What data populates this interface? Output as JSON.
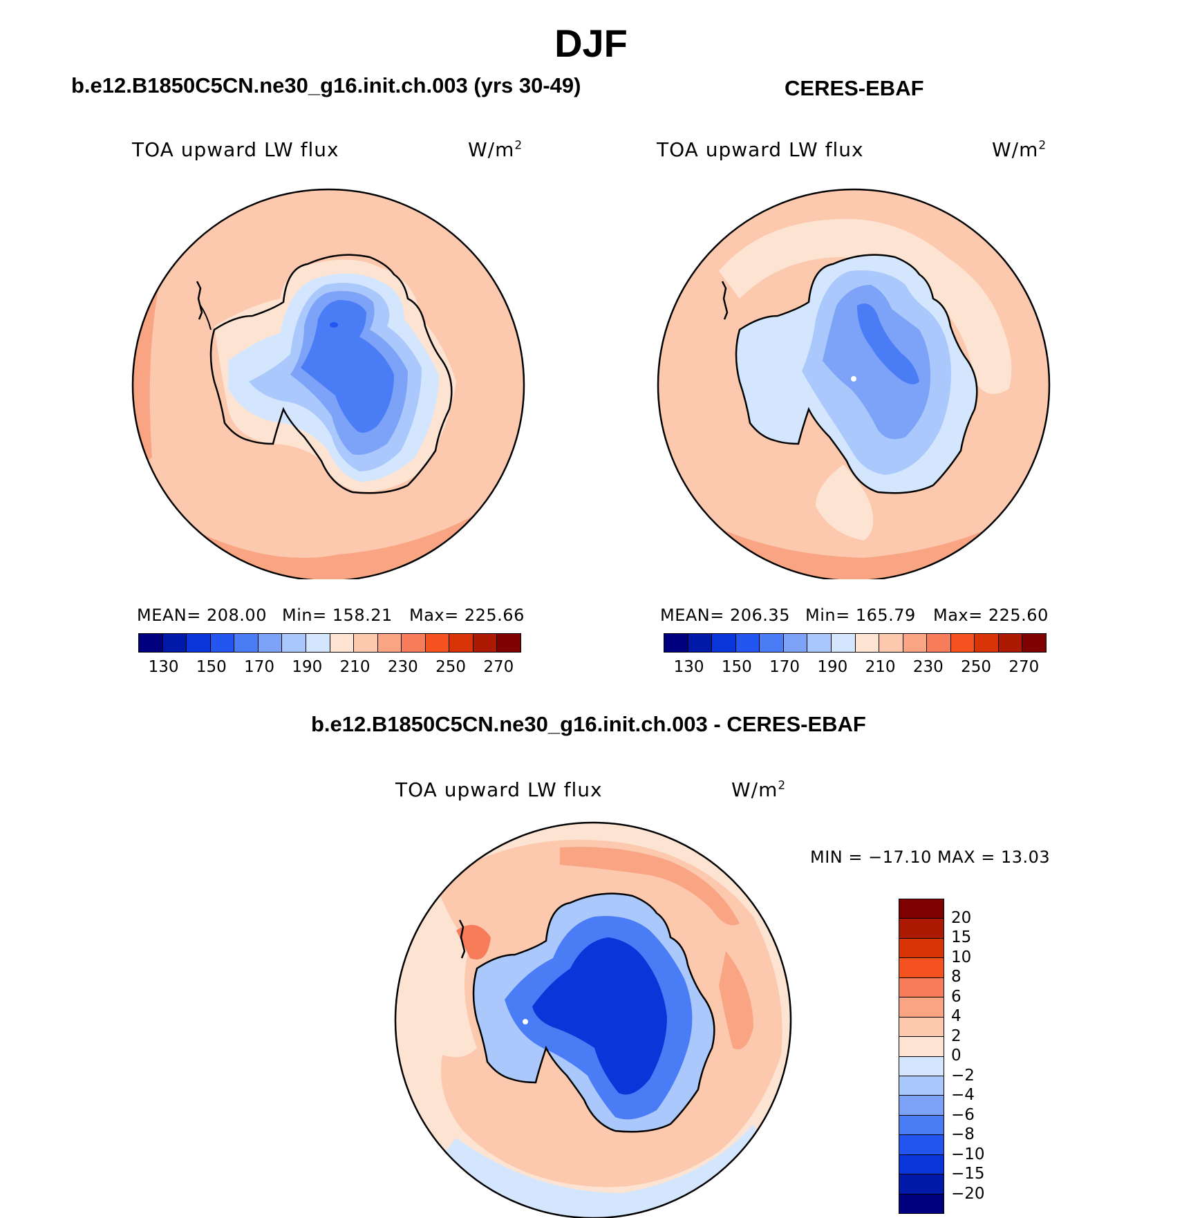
{
  "figure": {
    "title": "DJF",
    "panels": [
      {
        "subtitle": "b.e12.B1850C5CN.ne30_g16.init.ch.003 (yrs 30-49)",
        "left_label": "TOA upward LW flux",
        "units": "W/m",
        "units_sup": "2",
        "stats": {
          "mean": "MEAN= 208.00",
          "min": "Min= 158.21",
          "max": "Max= 225.66"
        },
        "colorbar": {
          "tick_labels": [
            "130",
            "150",
            "170",
            "190",
            "210",
            "230",
            "250",
            "270"
          ],
          "colors": [
            "#00007f",
            "#0019a8",
            "#0a35d8",
            "#2356f0",
            "#4a7cf5",
            "#7da3f8",
            "#aac8fb",
            "#d3e6fd",
            "#fde4d2",
            "#fcc8ae",
            "#f9a584",
            "#f67c5a",
            "#f4531f",
            "#d93408",
            "#ad1a04",
            "#7f0000"
          ]
        }
      },
      {
        "subtitle": "CERES-EBAF",
        "left_label": "TOA upward LW flux",
        "units": "W/m",
        "units_sup": "2",
        "stats": {
          "mean": "MEAN= 206.35",
          "min": "Min= 165.79",
          "max": "Max= 225.60"
        },
        "colorbar": {
          "tick_labels": [
            "130",
            "150",
            "170",
            "190",
            "210",
            "230",
            "250",
            "270"
          ],
          "colors": [
            "#00007f",
            "#0019a8",
            "#0a35d8",
            "#2356f0",
            "#4a7cf5",
            "#7da3f8",
            "#aac8fb",
            "#d3e6fd",
            "#fde4d2",
            "#fcc8ae",
            "#f9a584",
            "#f67c5a",
            "#f4531f",
            "#d93408",
            "#ad1a04",
            "#7f0000"
          ]
        }
      },
      {
        "subtitle": "b.e12.B1850C5CN.ne30_g16.init.ch.003 - CERES-EBAF",
        "left_label": "TOA upward LW flux",
        "units": "W/m",
        "units_sup": "2",
        "stats": {
          "minmax": "MIN = −17.10 MAX =   13.03"
        },
        "colorbar": {
          "tick_labels": [
            "20",
            "15",
            "10",
            "8",
            "6",
            "4",
            "2",
            "0",
            "−2",
            "−4",
            "−6",
            "−8",
            "−10",
            "−15",
            "−20"
          ],
          "colors": [
            "#7f0000",
            "#ad1a04",
            "#d93408",
            "#f4531f",
            "#f67c5a",
            "#f9a584",
            "#fcc8ae",
            "#fde4d2",
            "#d3e6fd",
            "#aac8fb",
            "#7da3f8",
            "#4a7cf5",
            "#2356f0",
            "#0a35d8",
            "#0019a8",
            "#00007f"
          ]
        }
      }
    ]
  }
}
